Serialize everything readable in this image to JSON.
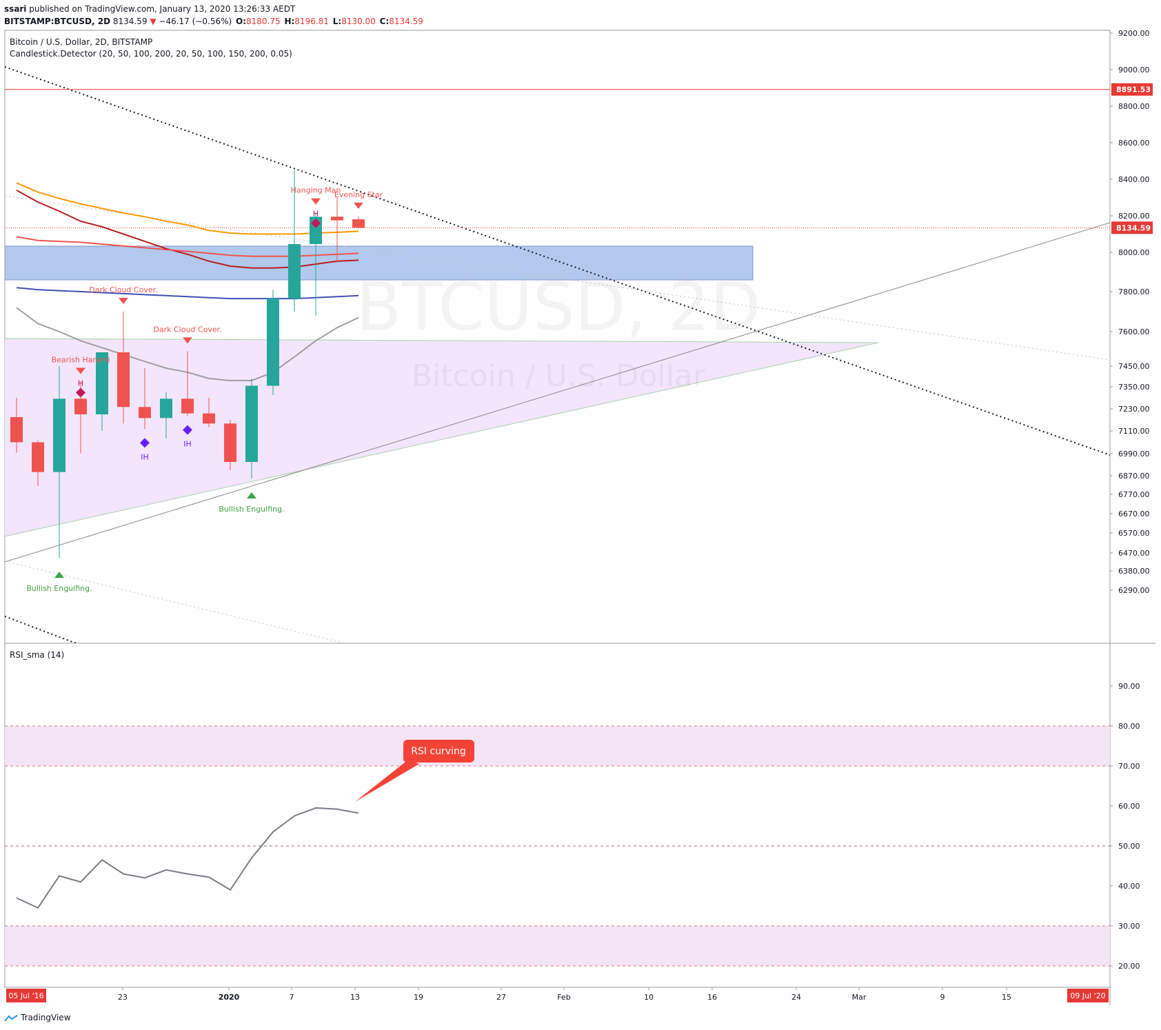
{
  "header": {
    "author": "ssari",
    "published_text": " published on TradingView.com, January 13, 2020 13:26:33 AEDT",
    "symbol": "BITSTAMP:BTCUSD, 2D",
    "last_price": "8134.59",
    "change_arrow": "▼",
    "change": "−46.17 (−0.56%)",
    "o_label": "O:",
    "o_value": "8180.75",
    "h_label": "H:",
    "h_value": "8196.81",
    "l_label": "L:",
    "l_value": "8130.00",
    "c_label": "C:",
    "c_value": "8134.59"
  },
  "colors": {
    "bull": "#26a69a",
    "bear": "#ef5350",
    "axis_text": "#131722",
    "grid_border": "#b2b5be",
    "horizontal_line": "#e53935",
    "zone_fill": "#a4bfea",
    "triangle_fill": "#f3e5fb",
    "rsi_band": "#f3e5f5",
    "rsi_line": "#787b86",
    "annotation_red": "#f44336"
  },
  "chart_data": [
    {
      "type": "candlestick",
      "legend": [
        "Bitcoin / U.S. Dollar, 2D, BITSTAMP",
        "Candlestick.Detector (20, 50, 100, 200, 20, 50, 100, 150, 200, 0.05)"
      ],
      "watermark": [
        "BTCUSD, 2D",
        "Bitcoin / U.S. Dollar"
      ],
      "y_ticks": [
        9200,
        9000,
        8800,
        8600,
        8400,
        8200,
        8000,
        7800,
        7600,
        7450,
        7350,
        7230,
        7110,
        6990,
        6870,
        6770,
        6670,
        6570,
        6470,
        6380,
        6290
      ],
      "y_tick_labels": [
        "9200.00",
        "9000.00",
        "8800.00",
        "8600.00",
        "8400.00",
        "8200.00",
        "8000.00",
        "7800.00",
        "7600.00",
        "7450.00",
        "7350.00",
        "7230.00",
        "7110.00",
        "6990.00",
        "6870.00",
        "6770.00",
        "6670.00",
        "6570.00",
        "6470.00",
        "6380.00",
        "6290.00"
      ],
      "x_tick_labels": [
        "23",
        "2020",
        "7",
        "13",
        "19",
        "27",
        "Feb",
        "10",
        "16",
        "24",
        "Mar",
        "9",
        "15"
      ],
      "x_range_labels": [
        "05 Jul '16",
        "09 Jul '20"
      ],
      "price_labels": [
        {
          "text": "8891.53",
          "value": 8891.53
        },
        {
          "text": "8134.59",
          "value": 8134.59
        }
      ],
      "candles": [
        {
          "o": 7185,
          "h": 7290,
          "l": 6995,
          "c": 7050
        },
        {
          "o": 7050,
          "h": 7060,
          "l": 6815,
          "c": 6890
        },
        {
          "o": 6890,
          "h": 7450,
          "l": 6445,
          "c": 7285
        },
        {
          "o": 7285,
          "h": 7375,
          "l": 6990,
          "c": 7200
        },
        {
          "o": 7200,
          "h": 7510,
          "l": 7110,
          "c": 7510
        },
        {
          "o": 7510,
          "h": 7700,
          "l": 7150,
          "c": 7240
        },
        {
          "o": 7240,
          "h": 7440,
          "l": 7120,
          "c": 7180
        },
        {
          "o": 7180,
          "h": 7320,
          "l": 7070,
          "c": 7285
        },
        {
          "o": 7285,
          "h": 7515,
          "l": 7190,
          "c": 7205
        },
        {
          "o": 7205,
          "h": 7290,
          "l": 7130,
          "c": 7150
        },
        {
          "o": 7150,
          "h": 7170,
          "l": 6900,
          "c": 6945
        },
        {
          "o": 6945,
          "h": 7390,
          "l": 6855,
          "c": 7355
        },
        {
          "o": 7355,
          "h": 7810,
          "l": 7305,
          "c": 7765
        },
        {
          "o": 7765,
          "h": 8450,
          "l": 7700,
          "c": 8045
        },
        {
          "o": 8045,
          "h": 8220,
          "l": 7680,
          "c": 8195
        },
        {
          "o": 8195,
          "h": 8300,
          "l": 7950,
          "c": 8175
        },
        {
          "o": 8180.75,
          "h": 8196.81,
          "l": 8130.0,
          "c": 8134.59
        }
      ],
      "moving_averages": [
        {
          "color": "#ff9800",
          "values": [
            8380,
            8330,
            8295,
            8265,
            8240,
            8215,
            8195,
            8170,
            8150,
            8120,
            8105,
            8100,
            8100,
            8100,
            8105,
            8110,
            8115
          ]
        },
        {
          "color": "#b71c1c",
          "values": [
            8340,
            8275,
            8225,
            8170,
            8140,
            8100,
            8060,
            8020,
            7990,
            7955,
            7930,
            7920,
            7920,
            7925,
            7940,
            7955,
            7960
          ]
        },
        {
          "color": "#ef5350",
          "values": [
            8085,
            8065,
            8060,
            8055,
            8045,
            8035,
            8025,
            8015,
            8005,
            7995,
            7985,
            7980,
            7980,
            7980,
            7985,
            7990,
            7995
          ]
        },
        {
          "color": "#3f51b5",
          "values": [
            7820,
            7810,
            7805,
            7800,
            7795,
            7790,
            7785,
            7780,
            7775,
            7770,
            7765,
            7765,
            7765,
            7765,
            7770,
            7775,
            7780
          ]
        },
        {
          "color": "#9e9e9e",
          "values": [
            7720,
            7640,
            7600,
            7560,
            7530,
            7500,
            7470,
            7440,
            7420,
            7390,
            7380,
            7380,
            7420,
            7490,
            7560,
            7620,
            7670
          ]
        }
      ],
      "pattern_labels": [
        {
          "text": "Dark Cloud Cover.",
          "candle": 5,
          "kind": "bear"
        },
        {
          "text": "Dark Cloud Cover.",
          "candle": 8,
          "kind": "bear"
        },
        {
          "text": "Bearish Harami",
          "candle": 3,
          "kind": "bear"
        },
        {
          "text": "H",
          "candle": 3,
          "kind": "hammer"
        },
        {
          "text": "IH",
          "candle": 6,
          "kind": "ih"
        },
        {
          "text": "IH",
          "candle": 8,
          "kind": "ih"
        },
        {
          "text": "Bullish Engulfing.",
          "candle": 11,
          "kind": "bull"
        },
        {
          "text": "Bullish Engulfing.",
          "candle": 2,
          "kind": "bull"
        },
        {
          "text": "Hanging Man",
          "candle": 14,
          "kind": "bear"
        },
        {
          "text": "H",
          "candle": 14,
          "kind": "hammer"
        },
        {
          "text": "Evening Star",
          "candle": 16,
          "kind": "bear"
        }
      ]
    },
    {
      "type": "line",
      "title": "RSI_sma (14)",
      "y_ticks": [
        90,
        80,
        70,
        60,
        50,
        40,
        30,
        20
      ],
      "y_tick_labels": [
        "90.00",
        "80.00",
        "70.00",
        "60.00",
        "50.00",
        "40.00",
        "30.00",
        "20.00"
      ],
      "bands": [
        [
          70,
          80
        ],
        [
          20,
          30
        ]
      ],
      "dashed_levels": [
        80,
        70,
        50,
        30,
        20
      ],
      "values": [
        37,
        34.5,
        42.5,
        41,
        46.5,
        43,
        42,
        44,
        43,
        42.2,
        39,
        47,
        53.5,
        57.5,
        59.5,
        59.2,
        58.2
      ],
      "annotation": "RSI curving"
    }
  ]
}
